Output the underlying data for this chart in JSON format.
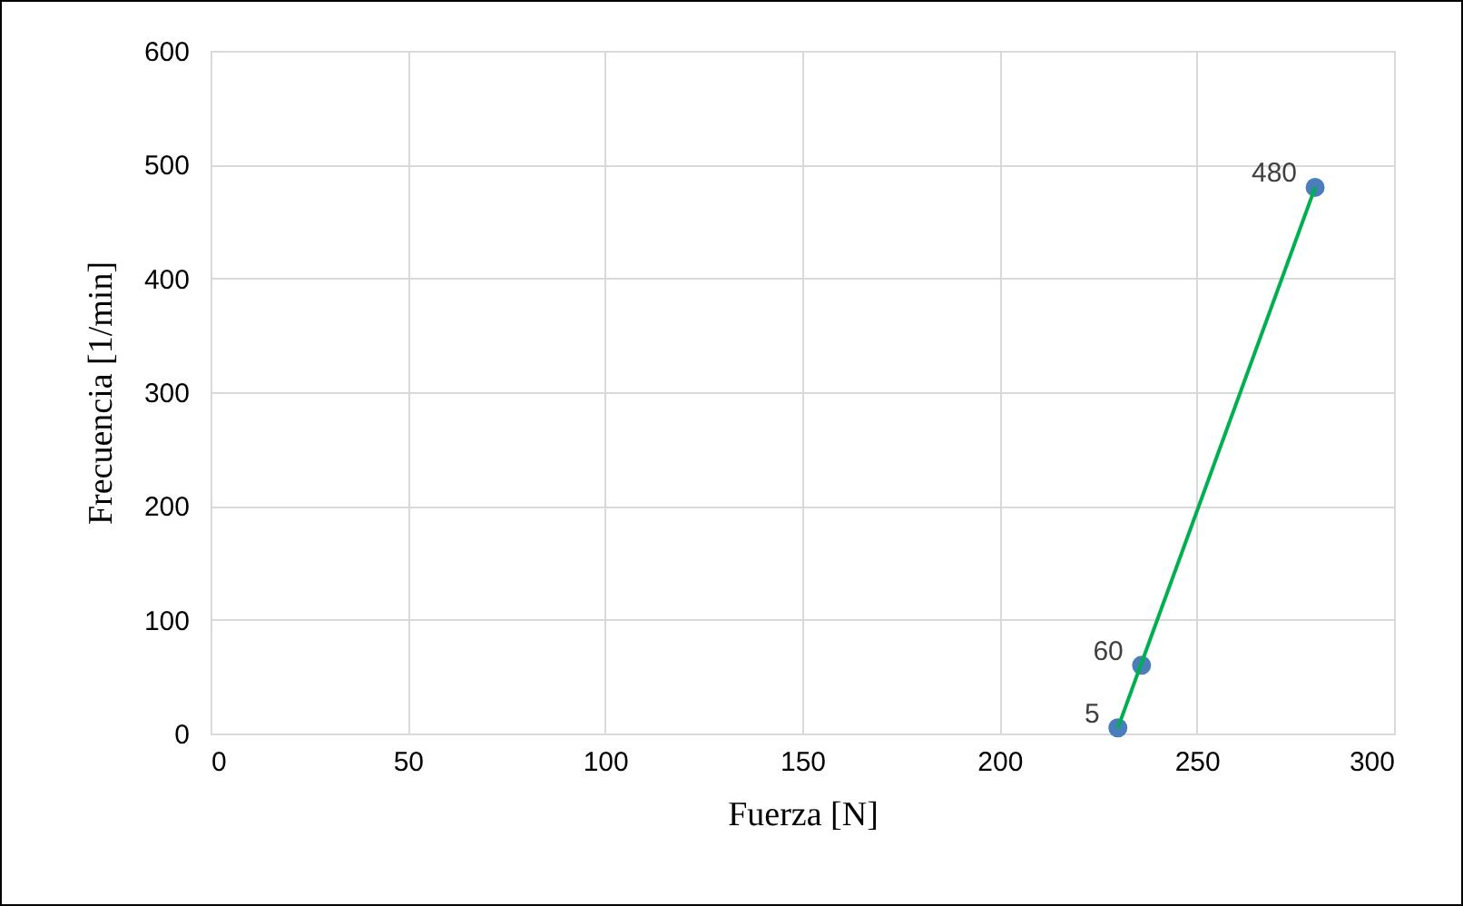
{
  "chart_data": {
    "type": "scatter",
    "xlabel": "Fuerza [N]",
    "ylabel": "Frecuencia [1/min]",
    "x": [
      230,
      236,
      280
    ],
    "series": [
      {
        "color": "#4a7ebb",
        "values": [
          5,
          60,
          480
        ],
        "value_labels": [
          "5",
          "60",
          "480"
        ]
      },
      {
        "type": "line",
        "color": "#00b050",
        "x": [
          230,
          280
        ],
        "values": [
          5,
          480
        ],
        "marker": "none"
      }
    ],
    "marker": "circle",
    "line_style": "solid",
    "grid": true,
    "xlim": [
      0,
      300
    ],
    "xticks": [
      0,
      50,
      100,
      150,
      200,
      250,
      300
    ],
    "ylim": [
      0,
      600
    ],
    "yticks": [
      0,
      100,
      200,
      300,
      400,
      500,
      600
    ]
  }
}
